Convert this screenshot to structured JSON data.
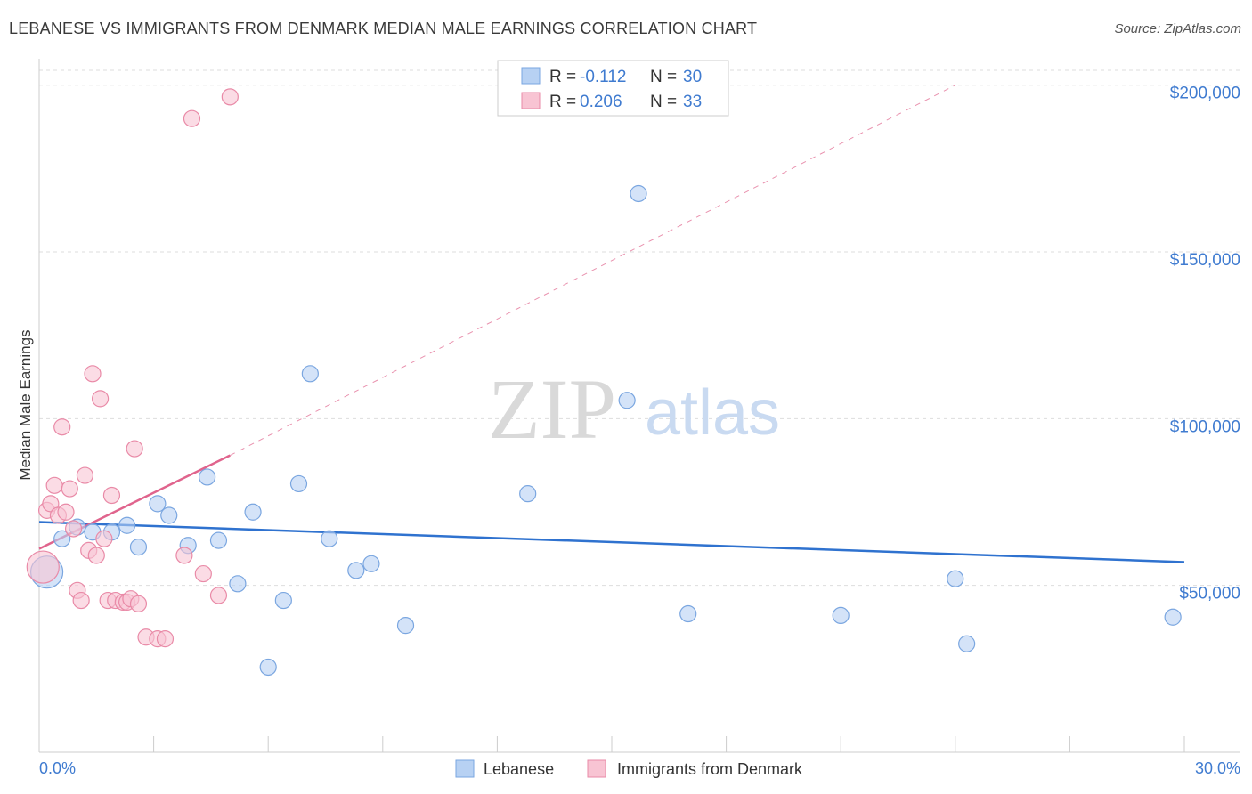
{
  "title": "LEBANESE VS IMMIGRANTS FROM DENMARK MEDIAN MALE EARNINGS CORRELATION CHART",
  "source": "Source: ZipAtlas.com",
  "watermark": {
    "zip": "ZIP",
    "atlas": "atlas"
  },
  "colors": {
    "blue_fill": "#b7d1f3",
    "blue_stroke": "#7aa6e0",
    "blue_line": "#2f72cf",
    "pink_fill": "#f8c4d3",
    "pink_stroke": "#e98aa7",
    "pink_line": "#e0648d",
    "grid": "#dddddd",
    "tick_text": "#3f7bd0"
  },
  "chart_data": {
    "type": "scatter",
    "xlabel": "",
    "ylabel": "Median Male Earnings",
    "xlim": [
      0,
      30
    ],
    "ylim": [
      0,
      205000
    ],
    "x_tick_labels": {
      "min": "0.0%",
      "max": "30.0%"
    },
    "y_ticks": [
      {
        "value": 50000,
        "label": "$50,000"
      },
      {
        "value": 100000,
        "label": "$100,000"
      },
      {
        "value": 150000,
        "label": "$150,000"
      },
      {
        "value": 200000,
        "label": "$200,000"
      }
    ],
    "legend": {
      "entries": [
        {
          "series": "Lebanese",
          "r_label": "R =",
          "r_value": "-0.112",
          "n_label": "N =",
          "n_value": "30"
        },
        {
          "series": "Immigrants from Denmark",
          "r_label": "R =",
          "r_value": "0.206",
          "n_label": "N =",
          "n_value": "33"
        }
      ]
    },
    "series": [
      {
        "name": "Lebanese",
        "color": "blue",
        "trend": {
          "x": [
            0,
            30
          ],
          "y": [
            69000,
            57000
          ],
          "style": "solid"
        },
        "points": [
          {
            "x": 0.2,
            "y": 54000,
            "large": true
          },
          {
            "x": 0.6,
            "y": 64000
          },
          {
            "x": 1.0,
            "y": 67500
          },
          {
            "x": 1.4,
            "y": 66000
          },
          {
            "x": 1.9,
            "y": 66000
          },
          {
            "x": 2.3,
            "y": 68000
          },
          {
            "x": 2.6,
            "y": 61500
          },
          {
            "x": 3.1,
            "y": 74500
          },
          {
            "x": 3.4,
            "y": 71000
          },
          {
            "x": 3.9,
            "y": 62000
          },
          {
            "x": 4.4,
            "y": 82500
          },
          {
            "x": 4.7,
            "y": 63500
          },
          {
            "x": 5.2,
            "y": 50500
          },
          {
            "x": 5.6,
            "y": 72000
          },
          {
            "x": 6.0,
            "y": 25500
          },
          {
            "x": 6.4,
            "y": 45500
          },
          {
            "x": 6.8,
            "y": 80500
          },
          {
            "x": 7.1,
            "y": 113500
          },
          {
            "x": 7.6,
            "y": 64000
          },
          {
            "x": 8.3,
            "y": 54500
          },
          {
            "x": 8.7,
            "y": 56500
          },
          {
            "x": 9.6,
            "y": 38000
          },
          {
            "x": 12.8,
            "y": 77500
          },
          {
            "x": 15.4,
            "y": 105500
          },
          {
            "x": 15.7,
            "y": 167500
          },
          {
            "x": 17.0,
            "y": 41500
          },
          {
            "x": 21.0,
            "y": 41000
          },
          {
            "x": 24.0,
            "y": 52000
          },
          {
            "x": 24.3,
            "y": 32500
          },
          {
            "x": 29.7,
            "y": 40500
          }
        ]
      },
      {
        "name": "Immigrants from Denmark",
        "color": "pink",
        "trend": {
          "x": [
            0,
            5.0
          ],
          "y": [
            61000,
            89000
          ],
          "style": "solid",
          "dashed_extension": {
            "x": [
              5.0,
              24.0
            ],
            "y": [
              89000,
              200000
            ]
          }
        },
        "points": [
          {
            "x": 0.1,
            "y": 55500,
            "large": true
          },
          {
            "x": 0.2,
            "y": 72500
          },
          {
            "x": 0.3,
            "y": 74500
          },
          {
            "x": 0.4,
            "y": 80000
          },
          {
            "x": 0.5,
            "y": 71000
          },
          {
            "x": 0.6,
            "y": 97500
          },
          {
            "x": 0.7,
            "y": 72000
          },
          {
            "x": 0.8,
            "y": 79000
          },
          {
            "x": 0.9,
            "y": 67000
          },
          {
            "x": 1.0,
            "y": 48500
          },
          {
            "x": 1.1,
            "y": 45500
          },
          {
            "x": 1.2,
            "y": 83000
          },
          {
            "x": 1.3,
            "y": 60500
          },
          {
            "x": 1.4,
            "y": 113500
          },
          {
            "x": 1.5,
            "y": 59000
          },
          {
            "x": 1.6,
            "y": 106000
          },
          {
            "x": 1.7,
            "y": 64000
          },
          {
            "x": 1.8,
            "y": 45500
          },
          {
            "x": 1.9,
            "y": 77000
          },
          {
            "x": 2.0,
            "y": 45500
          },
          {
            "x": 2.2,
            "y": 45000
          },
          {
            "x": 2.3,
            "y": 45000
          },
          {
            "x": 2.4,
            "y": 46000
          },
          {
            "x": 2.5,
            "y": 91000
          },
          {
            "x": 2.6,
            "y": 44500
          },
          {
            "x": 2.8,
            "y": 34500
          },
          {
            "x": 3.1,
            "y": 34000
          },
          {
            "x": 3.3,
            "y": 34000
          },
          {
            "x": 3.8,
            "y": 59000
          },
          {
            "x": 4.0,
            "y": 190000
          },
          {
            "x": 4.3,
            "y": 53500
          },
          {
            "x": 4.7,
            "y": 47000
          },
          {
            "x": 5.0,
            "y": 196500
          }
        ]
      }
    ]
  }
}
